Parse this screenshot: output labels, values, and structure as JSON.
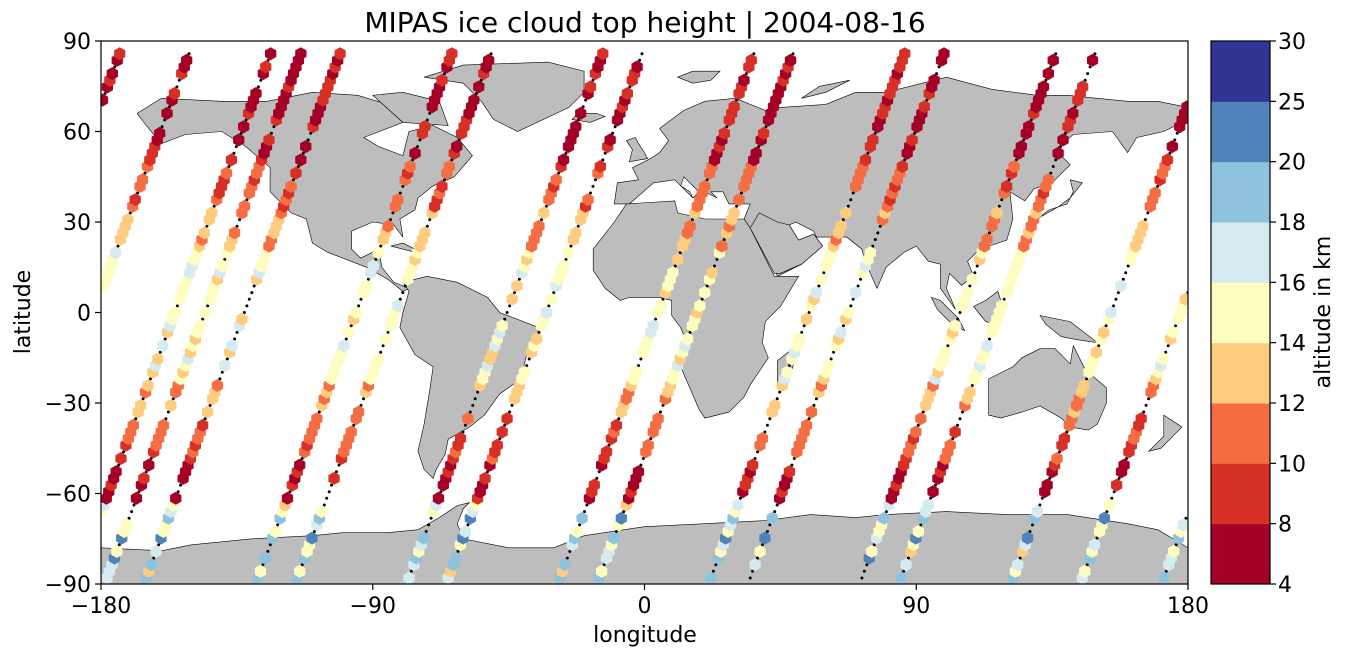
{
  "chart_data": {
    "type": "scatter",
    "title": "MIPAS ice cloud top height | 2004-08-16",
    "xlabel": "longitude",
    "ylabel": "latitude",
    "xlim": [
      -180,
      180
    ],
    "ylim": [
      -90,
      90
    ],
    "xticks": [
      "−180",
      "−90",
      "0",
      "90",
      "180"
    ],
    "xtick_values": [
      -180,
      -90,
      0,
      90,
      180
    ],
    "yticks": [
      "−90",
      "−60",
      "−30",
      "0",
      "30",
      "60",
      "90"
    ],
    "ytick_values": [
      -90,
      -60,
      -30,
      0,
      30,
      60,
      90
    ],
    "background_map": "world-land-grey",
    "colorbar": {
      "label": "altitude in km",
      "boundaries": [
        4,
        8,
        10,
        12,
        14,
        16,
        18,
        20,
        25,
        30
      ],
      "tick_labels": [
        "4",
        "8",
        "10",
        "12",
        "14",
        "16",
        "18",
        "20",
        "25",
        "30"
      ],
      "colors": [
        "#a50026",
        "#d73027",
        "#f46d43",
        "#fdae61",
        "#fee090",
        "#ffffbf",
        "#e0f3f8",
        "#abd9e9",
        "#74add1",
        "#313695"
      ],
      "bin_colors": [
        "#a50026",
        "#d73027",
        "#f46d43",
        "#fdcc7f",
        "#fffcbf",
        "#d4ebf2",
        "#8fc3dd",
        "#5183bb",
        "#313695"
      ]
    },
    "orbits": {
      "ascending_start_lons": [
        -178,
        -128,
        -78,
        -28,
        22,
        72,
        122,
        172
      ],
      "descending_start_lons": [
        -150,
        -100,
        -50,
        0,
        50,
        100,
        150
      ],
      "lon_span_per_pass": 65,
      "no_cloud_marker": "black-dot"
    }
  }
}
